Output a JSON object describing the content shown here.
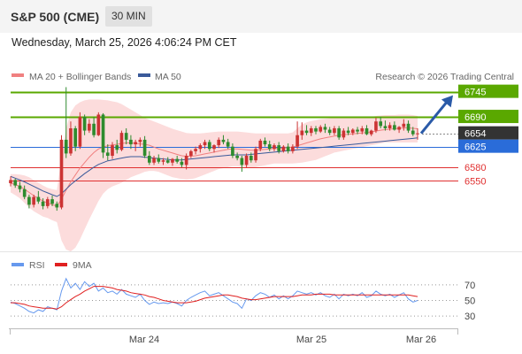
{
  "header": {
    "title": "S&P 500 (CME)",
    "interval": "30 MIN"
  },
  "datetime": "Wednesday, March 25, 2026 4:06:24 PM CET",
  "legend": {
    "bollinger": {
      "label": "MA 20 + Bollinger Bands",
      "color": "#f08080"
    },
    "ma50": {
      "label": "MA 50",
      "color": "#3a5a9a"
    }
  },
  "copyright": "Research © 2026 Trading Central",
  "colors": {
    "up": "#cc3333",
    "down": "#2e8b2e",
    "resistance": "#5aa800",
    "support": "#e03030",
    "pivot": "#2a6cd9",
    "current": "#333333",
    "arrow": "#2a5aa8",
    "band": "#fcdcdc",
    "rsi": "#6699ee",
    "rsi_ma": "#e02020",
    "ma50": "#3a5a9a",
    "ma20": "#f08080"
  },
  "levels": [
    {
      "value": 6745,
      "label": "6745",
      "type": "resistance"
    },
    {
      "value": 6690,
      "label": "6690",
      "type": "resistance"
    },
    {
      "value": 6654,
      "label": "6654",
      "type": "current"
    },
    {
      "value": 6625,
      "label": "6625",
      "type": "pivot"
    },
    {
      "value": 6580,
      "label": "6580",
      "type": "support"
    },
    {
      "value": 6550,
      "label": "6550",
      "type": "support"
    }
  ],
  "x_labels": [
    "Mar 24",
    "Mar 25",
    "Mar 26"
  ],
  "rsi_panel": {
    "legend": {
      "rsi": "RSI",
      "ma": "9MA"
    },
    "ticks": [
      "70",
      "50",
      "30"
    ],
    "levels": [
      70,
      50,
      30
    ]
  },
  "chart_data": {
    "type": "candlestick",
    "y_range": [
      6400,
      6752
    ],
    "candles": [
      [
        6545,
        6560,
        6538,
        6552
      ],
      [
        6552,
        6555,
        6535,
        6540
      ],
      [
        6540,
        6548,
        6525,
        6532
      ],
      [
        6532,
        6540,
        6510,
        6515
      ],
      [
        6515,
        6520,
        6490,
        6498
      ],
      [
        6498,
        6520,
        6492,
        6515
      ],
      [
        6515,
        6528,
        6500,
        6505
      ],
      [
        6505,
        6512,
        6488,
        6495
      ],
      [
        6495,
        6515,
        6490,
        6510
      ],
      [
        6510,
        6518,
        6495,
        6500
      ],
      [
        6500,
        6505,
        6485,
        6492
      ],
      [
        6492,
        6650,
        6488,
        6640
      ],
      [
        6640,
        6755,
        6600,
        6610
      ],
      [
        6610,
        6680,
        6605,
        6665
      ],
      [
        6665,
        6670,
        6615,
        6625
      ],
      [
        6625,
        6700,
        6620,
        6690
      ],
      [
        6690,
        6695,
        6650,
        6660
      ],
      [
        6660,
        6685,
        6655,
        6675
      ],
      [
        6675,
        6690,
        6645,
        6650
      ],
      [
        6650,
        6700,
        6648,
        6695
      ],
      [
        6695,
        6698,
        6600,
        6612
      ],
      [
        6612,
        6630,
        6595,
        6605
      ],
      [
        6605,
        6635,
        6598,
        6628
      ],
      [
        6628,
        6640,
        6610,
        6618
      ],
      [
        6618,
        6660,
        6615,
        6655
      ],
      [
        6655,
        6665,
        6630,
        6640
      ],
      [
        6640,
        6650,
        6620,
        6630
      ],
      [
        6630,
        6640,
        6615,
        6635
      ],
      [
        6635,
        6645,
        6625,
        6640
      ],
      [
        6640,
        6648,
        6600,
        6605
      ],
      [
        6605,
        6615,
        6585,
        6590
      ],
      [
        6590,
        6605,
        6585,
        6600
      ],
      [
        6600,
        6608,
        6588,
        6592
      ],
      [
        6592,
        6600,
        6585,
        6595
      ],
      [
        6595,
        6602,
        6588,
        6590
      ],
      [
        6590,
        6600,
        6583,
        6598
      ],
      [
        6598,
        6605,
        6588,
        6592
      ],
      [
        6592,
        6600,
        6580,
        6585
      ],
      [
        6585,
        6610,
        6575,
        6605
      ],
      [
        6605,
        6618,
        6600,
        6615
      ],
      [
        6615,
        6625,
        6608,
        6620
      ],
      [
        6620,
        6632,
        6612,
        6628
      ],
      [
        6628,
        6640,
        6620,
        6635
      ],
      [
        6635,
        6640,
        6615,
        6620
      ],
      [
        6620,
        6630,
        6612,
        6628
      ],
      [
        6628,
        6645,
        6622,
        6640
      ],
      [
        6640,
        6650,
        6630,
        6635
      ],
      [
        6635,
        6642,
        6620,
        6625
      ],
      [
        6625,
        6632,
        6600,
        6605
      ],
      [
        6605,
        6612,
        6595,
        6600
      ],
      [
        6600,
        6605,
        6570,
        6585
      ],
      [
        6585,
        6610,
        6580,
        6605
      ],
      [
        6605,
        6612,
        6590,
        6595
      ],
      [
        6595,
        6625,
        6590,
        6620
      ],
      [
        6620,
        6642,
        6615,
        6638
      ],
      [
        6638,
        6645,
        6625,
        6630
      ],
      [
        6630,
        6638,
        6615,
        6620
      ],
      [
        6620,
        6632,
        6615,
        6628
      ],
      [
        6628,
        6635,
        6610,
        6615
      ],
      [
        6615,
        6628,
        6612,
        6625
      ],
      [
        6625,
        6632,
        6610,
        6615
      ],
      [
        6615,
        6630,
        6610,
        6625
      ],
      [
        6625,
        6680,
        6620,
        6650
      ],
      [
        6650,
        6678,
        6640,
        6660
      ],
      [
        6660,
        6672,
        6650,
        6655
      ],
      [
        6655,
        6670,
        6648,
        6665
      ],
      [
        6665,
        6670,
        6652,
        6658
      ],
      [
        6658,
        6672,
        6655,
        6668
      ],
      [
        6668,
        6675,
        6655,
        6662
      ],
      [
        6662,
        6668,
        6650,
        6655
      ],
      [
        6655,
        6670,
        6650,
        6665
      ],
      [
        6665,
        6670,
        6640,
        6645
      ],
      [
        6645,
        6665,
        6640,
        6660
      ],
      [
        6660,
        6668,
        6650,
        6655
      ],
      [
        6655,
        6665,
        6650,
        6662
      ],
      [
        6662,
        6668,
        6652,
        6658
      ],
      [
        6658,
        6670,
        6652,
        6665
      ],
      [
        6665,
        6672,
        6650,
        6652
      ],
      [
        6652,
        6662,
        6648,
        6660
      ],
      [
        6660,
        6688,
        6655,
        6680
      ],
      [
        6680,
        6690,
        6665,
        6670
      ],
      [
        6670,
        6682,
        6660,
        6665
      ],
      [
        6665,
        6678,
        6660,
        6672
      ],
      [
        6672,
        6680,
        6660,
        6662
      ],
      [
        6662,
        6670,
        6655,
        6668
      ],
      [
        6668,
        6685,
        6660,
        6675
      ],
      [
        6675,
        6682,
        6655,
        6660
      ],
      [
        6660,
        6668,
        6648,
        6652
      ],
      [
        6652,
        6665,
        6640,
        6654
      ]
    ],
    "ma20": [
      6545,
      6542,
      6538,
      6532,
      6525,
      6518,
      6512,
      6506,
      6502,
      6498,
      6495,
      6510,
      6530,
      6548,
      6563,
      6578,
      6590,
      6602,
      6612,
      6620,
      6624,
      6627,
      6629,
      6630,
      6632,
      6633,
      6633,
      6632,
      6631,
      6630,
      6628,
      6624,
      6620,
      6617,
      6614,
      6611,
      6608,
      6605,
      6604,
      6604,
      6605,
      6607,
      6609,
      6611,
      6613,
      6615,
      6617,
      6619,
      6620,
      6620,
      6619,
      6618,
      6617,
      6617,
      6618,
      6619,
      6620,
      6621,
      6621,
      6622,
      6623,
      6624,
      6627,
      6630,
      6633,
      6636,
      6639,
      6642,
      6644,
      6646,
      6648,
      6650,
      6651,
      6652,
      6653,
      6654,
      6655,
      6656,
      6657,
      6659,
      6661,
      6662,
      6663,
      6664,
      6665,
      6666,
      6666,
      6665,
      6664
    ],
    "bollinger_upper": [
      6565,
      6565,
      6564,
      6562,
      6558,
      6552,
      6546,
      6540,
      6535,
      6532,
      6530,
      6600,
      6665,
      6700,
      6715,
      6722,
      6726,
      6728,
      6728,
      6728,
      6727,
      6726,
      6724,
      6722,
      6718,
      6712,
      6706,
      6700,
      6694,
      6688,
      6684,
      6680,
      6676,
      6672,
      6668,
      6664,
      6661,
      6658,
      6655,
      6654,
      6654,
      6654,
      6655,
      6656,
      6657,
      6658,
      6658,
      6658,
      6658,
      6658,
      6657,
      6656,
      6655,
      6654,
      6654,
      6654,
      6654,
      6654,
      6654,
      6654,
      6654,
      6656,
      6665,
      6673,
      6678,
      6681,
      6683,
      6685,
      6686,
      6687,
      6688,
      6688,
      6688,
      6688,
      6688,
      6688,
      6689,
      6689,
      6690,
      6692,
      6693,
      6694,
      6694,
      6694,
      6695,
      6695,
      6695,
      6694,
      6692
    ],
    "bollinger_lower": [
      6525,
      6519,
      6512,
      6502,
      6492,
      6484,
      6478,
      6472,
      6469,
      6464,
      6460,
      6420,
      6400,
      6396,
      6404,
      6422,
      6444,
      6466,
      6486,
      6506,
      6522,
      6532,
      6538,
      6542,
      6546,
      6552,
      6558,
      6562,
      6566,
      6570,
      6572,
      6572,
      6570,
      6566,
      6562,
      6558,
      6556,
      6554,
      6553,
      6554,
      6556,
      6560,
      6564,
      6568,
      6572,
      6576,
      6578,
      6580,
      6582,
      6582,
      6581,
      6580,
      6579,
      6580,
      6582,
      6584,
      6586,
      6588,
      6588,
      6588,
      6588,
      6588,
      6589,
      6590,
      6592,
      6594,
      6596,
      6600,
      6604,
      6608,
      6612,
      6614,
      6616,
      6618,
      6620,
      6622,
      6624,
      6626,
      6628,
      6630,
      6632,
      6634,
      6634,
      6634,
      6634,
      6634,
      6634,
      6634,
      6634
    ],
    "ma50": [
      6560,
      6556,
      6552,
      6548,
      6543,
      6538,
      6533,
      6528,
      6524,
      6520,
      6516,
      6522,
      6532,
      6542,
      6550,
      6558,
      6566,
      6573,
      6580,
      6586,
      6590,
      6594,
      6596,
      6598,
      6600,
      6602,
      6603,
      6603,
      6603,
      6602,
      6601,
      6600,
      6599,
      6598,
      6597,
      6596,
      6596,
      6596,
      6597,
      6598,
      6599,
      6600,
      6601,
      6602,
      6603,
      6604,
      6605,
      6606,
      6607,
      6607,
      6607,
      6607,
      6608,
      6609,
      6610,
      6611,
      6612,
      6613,
      6614,
      6615,
      6616,
      6617,
      6618,
      6619,
      6620,
      6621,
      6622,
      6623,
      6624,
      6625,
      6626,
      6627,
      6628,
      6629,
      6630,
      6631,
      6632,
      6633,
      6634,
      6635,
      6636,
      6637,
      6638,
      6639,
      6640,
      6641,
      6642,
      6643,
      6644
    ],
    "rsi": [
      48,
      46,
      43,
      40,
      36,
      34,
      38,
      36,
      42,
      40,
      38,
      62,
      78,
      66,
      72,
      64,
      74,
      68,
      72,
      62,
      66,
      60,
      62,
      58,
      64,
      58,
      56,
      54,
      58,
      50,
      45,
      48,
      46,
      47,
      46,
      48,
      46,
      43,
      50,
      54,
      57,
      60,
      62,
      56,
      58,
      60,
      56,
      52,
      48,
      46,
      40,
      52,
      50,
      56,
      60,
      58,
      54,
      57,
      52,
      56,
      52,
      56,
      62,
      60,
      58,
      60,
      57,
      60,
      56,
      54,
      58,
      52,
      58,
      56,
      58,
      56,
      60,
      54,
      56,
      62,
      58,
      56,
      58,
      54,
      57,
      60,
      52,
      48,
      50
    ],
    "rsi_ma": [
      47,
      47,
      46,
      45,
      43,
      42,
      41,
      40,
      40,
      40,
      39,
      42,
      47,
      51,
      55,
      58,
      62,
      65,
      68,
      68,
      68,
      67,
      66,
      64,
      63,
      62,
      60,
      59,
      58,
      57,
      55,
      54,
      52,
      50,
      49,
      48,
      47,
      47,
      47,
      48,
      49,
      51,
      53,
      54,
      55,
      56,
      57,
      57,
      56,
      55,
      53,
      52,
      51,
      51,
      52,
      53,
      54,
      55,
      55,
      55,
      55,
      55,
      56,
      57,
      57,
      57,
      58,
      58,
      58,
      58,
      57,
      57,
      57,
      57,
      57,
      57,
      57,
      57,
      57,
      57,
      57,
      57,
      57,
      57,
      57,
      57,
      57,
      56,
      55
    ],
    "forecast_target": 6745
  }
}
